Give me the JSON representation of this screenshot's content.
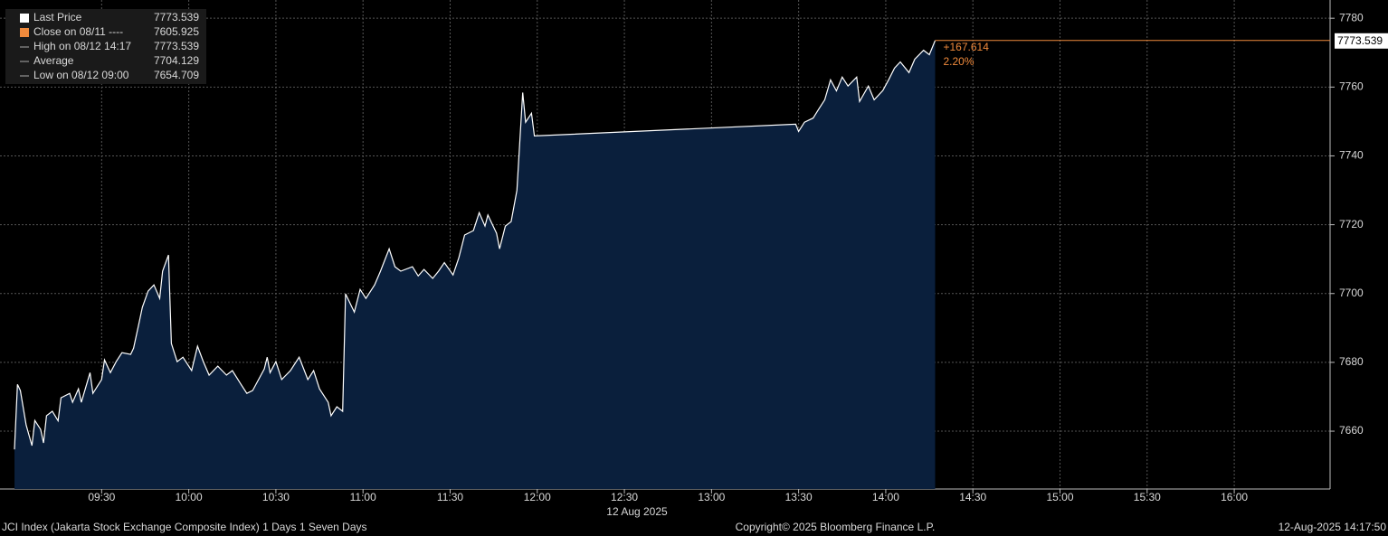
{
  "chart_data": {
    "type": "area",
    "legend": [
      {
        "label": "Last Price",
        "value": 7773.539
      },
      {
        "label": "Close on 08/11 ----",
        "value": 7605.925
      },
      {
        "label": "High on 08/12 14:17",
        "value": 7773.539
      },
      {
        "label": "Average",
        "value": 7704.129
      },
      {
        "label": "Low on 08/12 09:00",
        "value": 7654.709
      }
    ],
    "annotations": [
      "+167.614",
      "2.20%"
    ],
    "xlabel": "12 Aug 2025",
    "line_color": "#ffffff",
    "fill_color": "#0a1f3c",
    "last_color": "#f08a3c",
    "grid": true,
    "x": [
      540,
      541,
      542,
      544,
      546,
      547,
      549,
      550,
      551,
      553,
      555,
      556,
      559,
      560,
      562,
      563,
      566,
      567,
      570,
      571,
      573,
      575,
      577,
      580,
      581,
      583,
      584,
      586,
      588,
      590,
      591,
      593,
      594,
      596,
      598,
      601,
      603,
      605,
      607,
      610,
      613,
      615,
      618,
      620,
      622,
      626,
      627,
      628,
      630,
      632,
      635,
      638,
      641,
      643,
      645,
      648,
      649,
      651,
      653,
      654,
      657,
      659,
      661,
      663,
      664,
      666,
      669,
      671,
      673,
      677,
      679,
      681,
      684,
      686,
      688,
      691,
      693,
      695,
      698,
      700,
      702,
      703,
      706,
      707,
      709,
      711,
      713,
      715,
      716,
      718,
      719,
      809,
      810,
      812,
      815,
      817,
      819,
      821,
      823,
      825,
      827,
      830,
      831,
      834,
      836,
      839,
      841,
      843,
      845,
      848,
      850,
      853,
      855,
      857
    ],
    "values": [
      7654.7,
      7673.6,
      7671.8,
      7661.8,
      7655.8,
      7663.1,
      7660.5,
      7656.6,
      7664.5,
      7665.8,
      7663,
      7669.7,
      7671,
      7668.4,
      7672.3,
      7668.4,
      7677,
      7671,
      7675,
      7680.7,
      7677,
      7680.2,
      7682.8,
      7682.3,
      7684.1,
      7692,
      7696,
      7700.7,
      7702.5,
      7698.6,
      7706.5,
      7711.2,
      7685.5,
      7680.2,
      7681.5,
      7677.6,
      7684.7,
      7680.2,
      7676.3,
      7678.9,
      7676.3,
      7677.6,
      7673.6,
      7671,
      7671.8,
      7678.1,
      7681.5,
      7677,
      7680.2,
      7675,
      7677.6,
      7681.5,
      7675,
      7677.6,
      7672.3,
      7668.4,
      7664.5,
      7667.1,
      7665.8,
      7699.9,
      7694.6,
      7701.2,
      7698.6,
      7701.2,
      7702.5,
      7706.5,
      7713,
      7707.8,
      7706.5,
      7707.8,
      7705.1,
      7707,
      7704.4,
      7706.5,
      7709,
      7705.4,
      7710.4,
      7717,
      7718.3,
      7723.5,
      7719.6,
      7722.8,
      7717.5,
      7713,
      7719.6,
      7720.9,
      7730,
      7758.4,
      7749.8,
      7752.4,
      7745.8,
      7749.2,
      7747.1,
      7749.8,
      7751,
      7753.7,
      7756.3,
      7762.1,
      7758.9,
      7762.9,
      7760.3,
      7762.9,
      7755.8,
      7760.3,
      7756.3,
      7759,
      7762.1,
      7765.5,
      7767.3,
      7764.2,
      7768.1,
      7770.7,
      7769.4,
      7773.5
    ],
    "xlim": [
      535,
      993
    ],
    "xticks": [
      {
        "value": 570,
        "label": "09:30"
      },
      {
        "value": 600,
        "label": "10:00"
      },
      {
        "value": 630,
        "label": "10:30"
      },
      {
        "value": 660,
        "label": "11:00"
      },
      {
        "value": 690,
        "label": "11:30"
      },
      {
        "value": 720,
        "label": "12:00"
      },
      {
        "value": 750,
        "label": "12:30"
      },
      {
        "value": 780,
        "label": "13:00"
      },
      {
        "value": 810,
        "label": "13:30"
      },
      {
        "value": 840,
        "label": "14:00"
      },
      {
        "value": 870,
        "label": "14:30"
      },
      {
        "value": 900,
        "label": "15:00"
      },
      {
        "value": 930,
        "label": "15:30"
      },
      {
        "value": 960,
        "label": "16:00"
      }
    ],
    "ylim": [
      7643.2,
      7785.3
    ],
    "yticks": [
      7660,
      7680,
      7700,
      7720,
      7740,
      7760,
      7780
    ],
    "footer": {
      "left": "JCI Index (Jakarta Stock Exchange Composite Index) 1 Days 1 Seven Days",
      "center": "Copyright© 2025 Bloomberg Finance L.P.",
      "right": "12-Aug-2025 14:17:50"
    }
  }
}
